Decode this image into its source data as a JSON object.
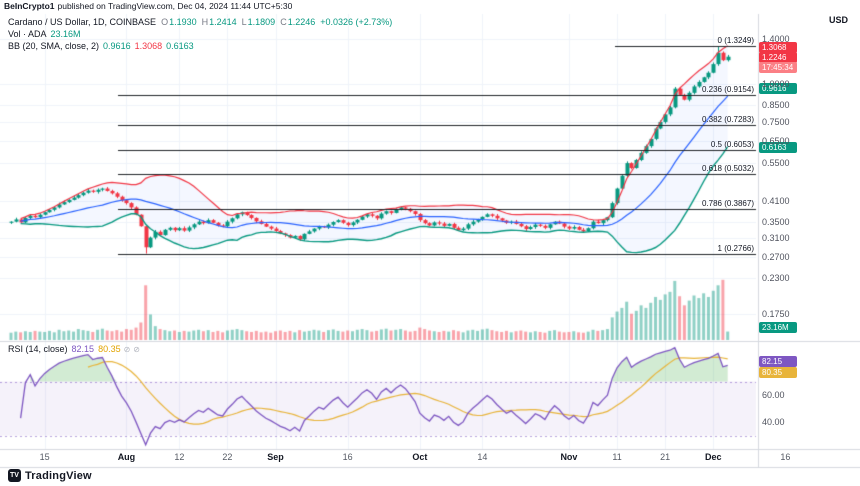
{
  "page": {
    "attribution_user": "BeInCrypto1",
    "attribution_rest": "published on TradingView.com, Dec 04, 2024 11:44 UTC+5:30"
  },
  "legend": {
    "symbol_title": "Cardano / US Dollar, 1D, COINBASE",
    "ohlc": {
      "o_label": "O",
      "o": "1.1930",
      "h_label": "H",
      "h": "1.2414",
      "l_label": "L",
      "l": "1.1809",
      "c_label": "C",
      "c": "1.2246",
      "change": "+0.0326 (+2.73%)"
    },
    "volume": {
      "label": "Vol · ADA",
      "value": "23.16M"
    },
    "bb": {
      "label": "BB (20, SMA, close, 2)",
      "basis": "0.9616",
      "upper": "1.3068",
      "lower": "0.6163"
    },
    "rsi": {
      "label": "RSI (14, close)",
      "value": "82.15",
      "ma": "80.35"
    }
  },
  "axis": {
    "currency": "USD",
    "price_ticks": [
      1.4,
      1.0,
      0.85,
      0.75,
      0.65,
      0.55,
      0.41,
      0.35,
      0.31,
      0.27,
      0.23,
      0.175
    ],
    "rsi_ticks": [
      60,
      40
    ],
    "time_ticks": [
      {
        "label": "15",
        "i": 7
      },
      {
        "label": "Aug",
        "i": 24,
        "month": true
      },
      {
        "label": "12",
        "i": 35
      },
      {
        "label": "22",
        "i": 45
      },
      {
        "label": "Sep",
        "i": 55,
        "month": true
      },
      {
        "label": "16",
        "i": 70
      },
      {
        "label": "Oct",
        "i": 85,
        "month": true
      },
      {
        "label": "14",
        "i": 98
      },
      {
        "label": "Nov",
        "i": 116,
        "month": true
      },
      {
        "label": "11",
        "i": 126
      },
      {
        "label": "21",
        "i": 136
      },
      {
        "label": "Dec",
        "i": 146,
        "month": true
      },
      {
        "label": "16",
        "i": 161
      }
    ]
  },
  "badges": {
    "bb_upper": "1.3068",
    "last_price": "1.2246",
    "countdown": "17:45:34",
    "bb_basis": "0.9616",
    "bb_lower": "0.6163",
    "volume": "23.16M",
    "rsi": "82.15",
    "rsi_ma": "80.35"
  },
  "branding": {
    "logo_mark": "TV",
    "logo_text": "TradingView"
  },
  "colors": {
    "up": "#089981",
    "down": "#f23645",
    "vol_up": "rgba(8,153,129,0.45)",
    "vol_down": "rgba(242,54,69,0.45)",
    "bb_upper": "#f23645",
    "bb_basis": "#2962ff",
    "bb_lower": "#089981",
    "bb_fill": "rgba(41,98,255,0.05)",
    "rsi": "#7e57c2",
    "rsi_ma": "#e8b43a",
    "rsi_band": "rgba(126,87,194,0.08)",
    "rsi_band_line": "rgba(126,87,194,0.55)",
    "rsi_overbought_fill": "rgba(76,175,80,0.25)",
    "fib_line": "#202327",
    "grid": "#f0f3fa",
    "divider": "#d6d9e0"
  },
  "chart_data": {
    "type": "candlestick+volume+rsi",
    "symbol": "Cardano / US Dollar",
    "timeframe": "1D",
    "exchange": "COINBASE",
    "y_scale": "log",
    "price_ylim": [
      0.145,
      1.69
    ],
    "volume_ylim": [
      0,
      170
    ],
    "volume_unit": "millions",
    "rsi_ylim": [
      20,
      100
    ],
    "last_ohlc": {
      "open": 1.193,
      "high": 1.2414,
      "low": 1.1809,
      "close": 1.2246,
      "change": "+0.0326 (+2.73%)"
    },
    "fib_levels": [
      {
        "label": "0",
        "price": 1.3249
      },
      {
        "label": "0.236",
        "price": 0.9154
      },
      {
        "label": "0.382",
        "price": 0.7283
      },
      {
        "label": "0.5",
        "price": 0.6053
      },
      {
        "label": "0.618",
        "price": 0.5032
      },
      {
        "label": "0.786",
        "price": 0.3867
      },
      {
        "label": "1",
        "price": 0.2766
      }
    ],
    "indicators": {
      "bb": {
        "length": 20,
        "mult": 2
      },
      "rsi": {
        "length": 14,
        "ma_length": 14
      }
    },
    "first_open": 0.349,
    "closes": [
      0.352,
      0.358,
      0.35,
      0.362,
      0.368,
      0.364,
      0.371,
      0.378,
      0.385,
      0.392,
      0.401,
      0.408,
      0.415,
      0.422,
      0.43,
      0.438,
      0.445,
      0.441,
      0.448,
      0.452,
      0.444,
      0.436,
      0.425,
      0.414,
      0.405,
      0.392,
      0.371,
      0.34,
      0.29,
      0.312,
      0.326,
      0.318,
      0.331,
      0.336,
      0.33,
      0.335,
      0.329,
      0.337,
      0.345,
      0.352,
      0.348,
      0.356,
      0.349,
      0.342,
      0.34,
      0.352,
      0.361,
      0.372,
      0.378,
      0.37,
      0.362,
      0.353,
      0.346,
      0.339,
      0.334,
      0.328,
      0.322,
      0.318,
      0.312,
      0.316,
      0.308,
      0.321,
      0.327,
      0.334,
      0.34,
      0.337,
      0.344,
      0.351,
      0.356,
      0.349,
      0.343,
      0.35,
      0.357,
      0.366,
      0.372,
      0.368,
      0.361,
      0.374,
      0.381,
      0.376,
      0.385,
      0.392,
      0.388,
      0.381,
      0.373,
      0.356,
      0.348,
      0.342,
      0.35,
      0.347,
      0.341,
      0.346,
      0.336,
      0.33,
      0.334,
      0.345,
      0.352,
      0.358,
      0.365,
      0.372,
      0.368,
      0.361,
      0.355,
      0.349,
      0.352,
      0.346,
      0.34,
      0.333,
      0.338,
      0.344,
      0.341,
      0.336,
      0.345,
      0.352,
      0.347,
      0.339,
      0.334,
      0.338,
      0.331,
      0.327,
      0.335,
      0.352,
      0.348,
      0.356,
      0.364,
      0.405,
      0.452,
      0.498,
      0.548,
      0.528,
      0.561,
      0.592,
      0.623,
      0.658,
      0.712,
      0.748,
      0.792,
      0.835,
      0.962,
      0.918,
      0.885,
      0.932,
      0.978,
      1.012,
      1.048,
      1.085,
      1.158,
      1.262,
      1.193,
      1.2246
    ],
    "volumes": [
      20,
      23,
      21,
      24,
      22,
      25,
      23,
      22,
      25,
      21,
      28,
      24,
      26,
      23,
      30,
      27,
      25,
      22,
      28,
      31,
      26,
      24,
      27,
      23,
      30,
      28,
      34,
      48,
      150,
      70,
      38,
      30,
      27,
      24,
      26,
      22,
      25,
      23,
      26,
      28,
      24,
      27,
      22,
      25,
      21,
      26,
      28,
      30,
      27,
      24,
      22,
      25,
      21,
      23,
      20,
      24,
      26,
      22,
      25,
      21,
      27,
      23,
      25,
      28,
      26,
      22,
      27,
      29,
      25,
      23,
      26,
      24,
      28,
      30,
      27,
      23,
      25,
      29,
      31,
      26,
      28,
      30,
      26,
      23,
      25,
      34,
      30,
      26,
      24,
      22,
      25,
      23,
      27,
      24,
      21,
      26,
      28,
      25,
      29,
      31,
      27,
      24,
      22,
      25,
      21,
      24,
      26,
      23,
      21,
      24,
      22,
      20,
      25,
      27,
      23,
      21,
      22,
      24,
      21,
      20,
      23,
      28,
      25,
      27,
      30,
      62,
      78,
      88,
      105,
      72,
      80,
      95,
      88,
      102,
      118,
      110,
      125,
      132,
      162,
      120,
      95,
      108,
      122,
      115,
      128,
      118,
      135,
      150,
      165,
      23.16
    ],
    "overrides": {
      "28": {
        "low": 0.2766
      },
      "147": {
        "high": 1.3249
      },
      "149": {
        "open": 1.193,
        "high": 1.2414,
        "low": 1.1809,
        "close": 1.2246
      }
    }
  }
}
